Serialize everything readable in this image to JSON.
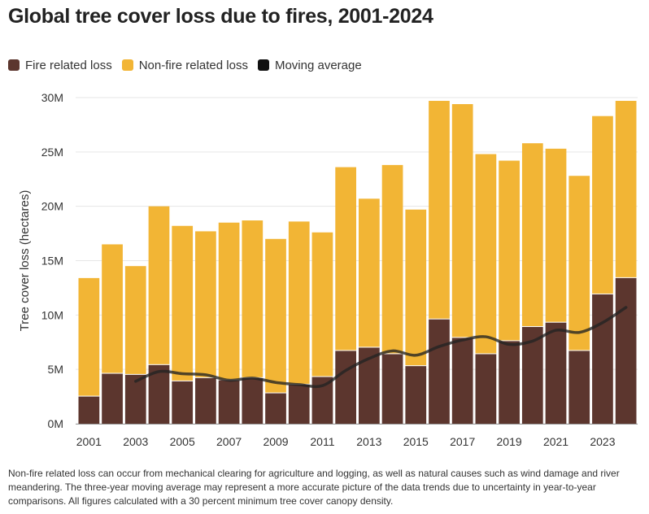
{
  "title": "Global tree cover loss due to fires, 2001-2024",
  "footnote": "Non-fire related loss can occur from mechanical clearing for agriculture and logging, as well as natural causes such as wind damage and river meandering. The three-year moving average may represent a more accurate picture of the data trends due to uncertainty in year-to-year comparisons. All figures calculated with a 30 percent minimum tree cover canopy density.",
  "colors": {
    "fire": "#5c362e",
    "nonfire": "#f2b535",
    "moving_average": "#222222",
    "grid": "#e6e6e6"
  },
  "chart_data": {
    "type": "bar",
    "stacked": true,
    "ylabel": "Tree cover loss (hectares)",
    "ylim": [
      0,
      30000000
    ],
    "y_ticks": [
      0,
      5000000,
      10000000,
      15000000,
      20000000,
      25000000,
      30000000
    ],
    "y_tick_labels": [
      "0M",
      "5M",
      "10M",
      "15M",
      "20M",
      "25M",
      "30M"
    ],
    "x_tick_labels": [
      "2001",
      "2003",
      "2005",
      "2007",
      "2009",
      "2011",
      "2013",
      "2015",
      "2017",
      "2019",
      "2021",
      "2023"
    ],
    "grid": true,
    "legend_position": "top-left",
    "categories": [
      "2001",
      "2002",
      "2003",
      "2004",
      "2005",
      "2006",
      "2007",
      "2008",
      "2009",
      "2010",
      "2011",
      "2012",
      "2013",
      "2014",
      "2015",
      "2016",
      "2017",
      "2018",
      "2019",
      "2020",
      "2021",
      "2022",
      "2023",
      "2024"
    ],
    "series": [
      {
        "name": "Fire related loss",
        "values": [
          2500000,
          4600000,
          4500000,
          5400000,
          3900000,
          4200000,
          4000000,
          4200000,
          2800000,
          3600000,
          4300000,
          6700000,
          7000000,
          6400000,
          5300000,
          9600000,
          7900000,
          6400000,
          7600000,
          8900000,
          9300000,
          6700000,
          11900000,
          13400000
        ]
      },
      {
        "name": "Non-fire related loss",
        "values": [
          10900000,
          11900000,
          10000000,
          14600000,
          14300000,
          13500000,
          14500000,
          14500000,
          14200000,
          15000000,
          13300000,
          16900000,
          13700000,
          17400000,
          14400000,
          20100000,
          21500000,
          18400000,
          16600000,
          16900000,
          16000000,
          16100000,
          16400000,
          16300000
        ]
      },
      {
        "name": "Moving average",
        "type": "line",
        "values": [
          null,
          null,
          3900000,
          4800000,
          4600000,
          4500000,
          4000000,
          4200000,
          3800000,
          3600000,
          3500000,
          4900000,
          6000000,
          6700000,
          6300000,
          7100000,
          7700000,
          8000000,
          7300000,
          7600000,
          8600000,
          8400000,
          9300000,
          10700000
        ]
      }
    ]
  }
}
